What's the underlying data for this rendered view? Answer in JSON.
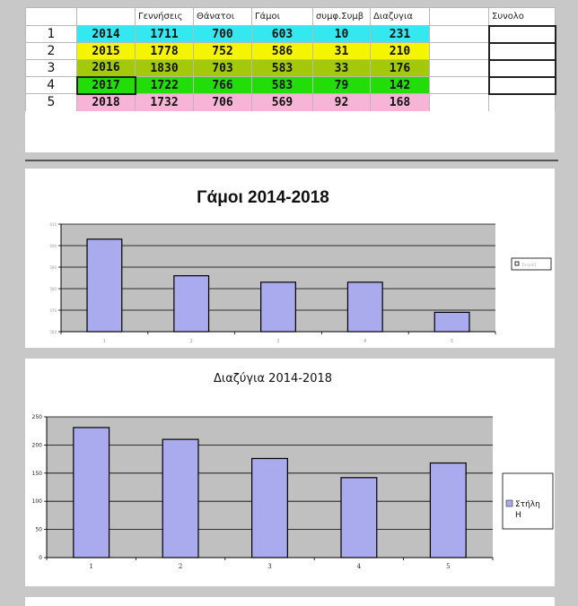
{
  "table": {
    "headers": [
      "",
      "",
      "Γεννήσεις",
      "Θάνατοι",
      "Γάμοι",
      "συμφ.Συμβ",
      "Διαζυγια",
      "",
      "Συνολο"
    ],
    "rows": [
      {
        "num": "1",
        "year": "2014",
        "births": "1711",
        "deaths": "700",
        "marriages": "603",
        "agreements": "10",
        "divorces": "231",
        "color": "#33e8ee"
      },
      {
        "num": "2",
        "year": "2015",
        "births": "1778",
        "deaths": "752",
        "marriages": "586",
        "agreements": "31",
        "divorces": "210",
        "color": "#f5f500"
      },
      {
        "num": "3",
        "year": "2016",
        "births": "1830",
        "deaths": "703",
        "marriages": "583",
        "agreements": "33",
        "divorces": "176",
        "color": "#a3c90a"
      },
      {
        "num": "4",
        "year": "2017",
        "births": "1722",
        "deaths": "766",
        "marriages": "583",
        "agreements": "79",
        "divorces": "142",
        "color": "#22dd08"
      },
      {
        "num": "5",
        "year": "2018",
        "births": "1732",
        "deaths": "706",
        "marriages": "569",
        "agreements": "92",
        "divorces": "168",
        "color": "#f8b4d6"
      }
    ]
  },
  "chart_data": [
    {
      "type": "bar",
      "title": "Γάμοι 2014-2018",
      "categories": [
        "1",
        "2",
        "3",
        "4",
        "5"
      ],
      "series": [
        {
          "name": "Σειρά1",
          "values": [
            603,
            586,
            583,
            583,
            569
          ]
        }
      ],
      "yticks": [
        "560",
        "570",
        "580",
        "590",
        "600",
        "610"
      ],
      "ylim": [
        560,
        610
      ],
      "grid": true,
      "legend": "right",
      "bar_color": "#aaaaee",
      "plot_color": "#c0c0c0"
    },
    {
      "type": "bar",
      "title": "Διαζύγια 2014-2018",
      "categories": [
        "1",
        "2",
        "3",
        "4",
        "5"
      ],
      "series": [
        {
          "name": "Στήλη Η",
          "values": [
            231,
            210,
            176,
            142,
            168
          ]
        }
      ],
      "yticks": [
        "0",
        "50",
        "100",
        "150",
        "200",
        "250"
      ],
      "ylim": [
        0,
        250
      ],
      "grid": true,
      "legend": "right",
      "bar_color": "#aaaaee",
      "plot_color": "#c0c0c0"
    }
  ]
}
